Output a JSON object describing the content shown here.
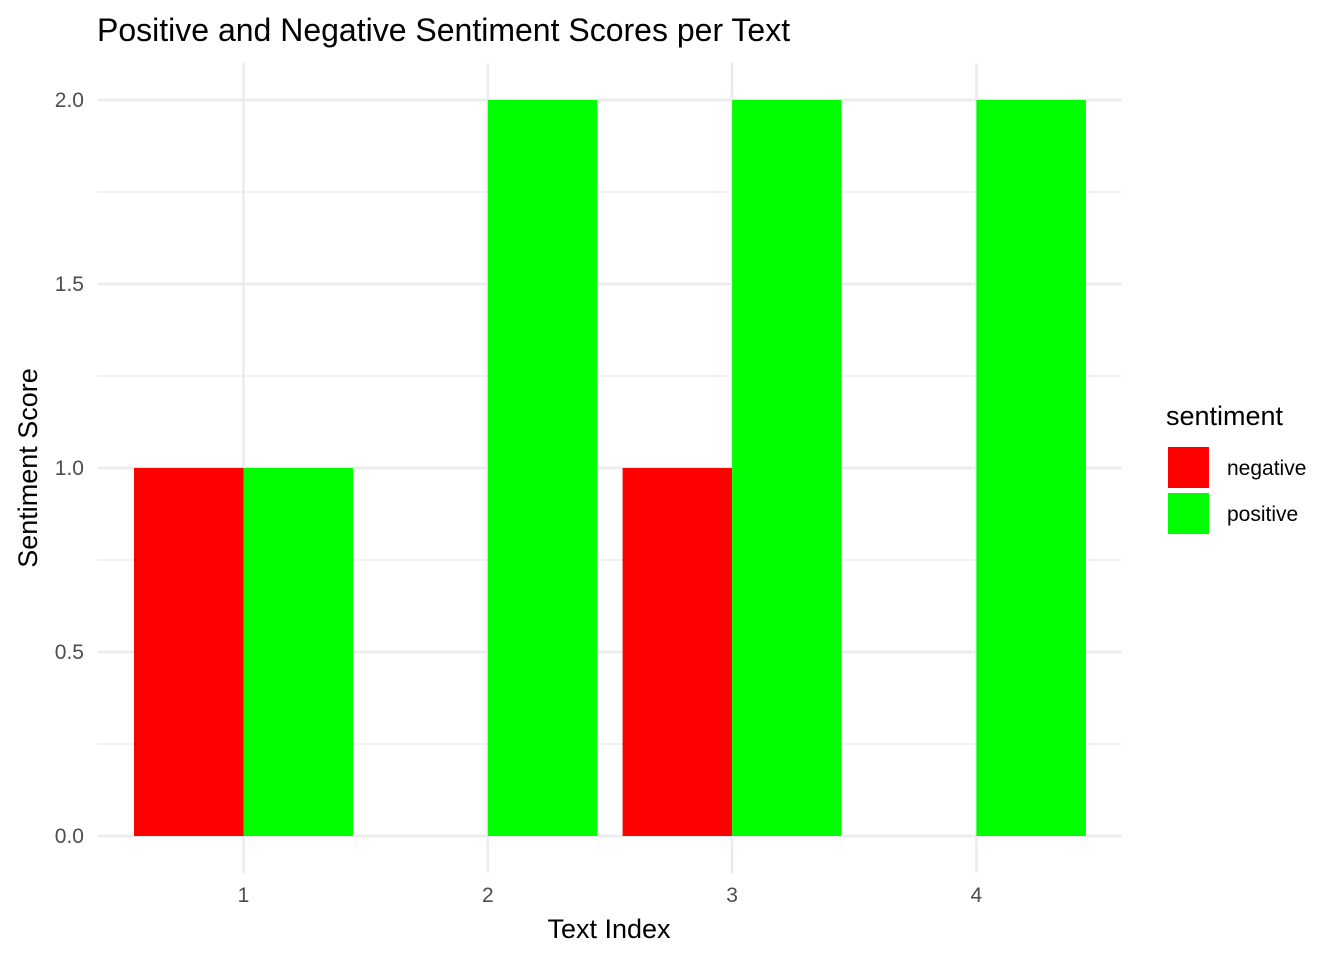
{
  "chart_data": {
    "type": "bar",
    "title": "Positive and Negative Sentiment Scores per Text",
    "xlabel": "Text Index",
    "ylabel": "Sentiment Score",
    "categories": [
      "1",
      "2",
      "3",
      "4"
    ],
    "series": [
      {
        "name": "negative",
        "color": "#ff0000",
        "values": [
          1,
          0,
          1,
          0
        ]
      },
      {
        "name": "positive",
        "color": "#00ff00",
        "values": [
          1,
          2,
          2,
          2
        ]
      }
    ],
    "y_ticks": [
      "0.0",
      "0.5",
      "1.0",
      "1.5",
      "2.0"
    ],
    "ylim": [
      0,
      2
    ],
    "grid": true,
    "legend": {
      "title": "sentiment",
      "placement": "right"
    }
  }
}
